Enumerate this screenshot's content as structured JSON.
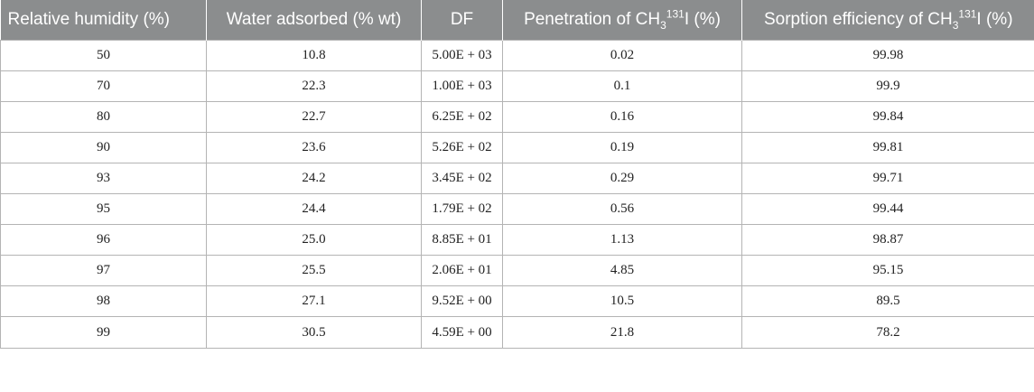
{
  "table": {
    "headers": [
      {
        "text": "Relative humidity (%)"
      },
      {
        "text": "Water adsorbed (% wt)"
      },
      {
        "text": "DF"
      },
      {
        "pre": "Penetration of CH",
        "sub": "3",
        "sup": "131",
        "post": "I (%)"
      },
      {
        "pre": "Sorption efficiency of CH",
        "sub": "3",
        "sup": "131",
        "post": "I (%)"
      }
    ],
    "rows": [
      [
        "50",
        "10.8",
        "5.00E + 03",
        "0.02",
        "99.98"
      ],
      [
        "70",
        "22.3",
        "1.00E + 03",
        "0.1",
        "99.9"
      ],
      [
        "80",
        "22.7",
        "6.25E + 02",
        "0.16",
        "99.84"
      ],
      [
        "90",
        "23.6",
        "5.26E + 02",
        "0.19",
        "99.81"
      ],
      [
        "93",
        "24.2",
        "3.45E + 02",
        "0.29",
        "99.71"
      ],
      [
        "95",
        "24.4",
        "1.79E + 02",
        "0.56",
        "99.44"
      ],
      [
        "96",
        "25.0",
        "8.85E + 01",
        "1.13",
        "98.87"
      ],
      [
        "97",
        "25.5",
        "2.06E + 01",
        "4.85",
        "95.15"
      ],
      [
        "98",
        "27.1",
        "9.52E + 00",
        "10.5",
        "89.5"
      ],
      [
        "99",
        "30.5",
        "4.59E + 00",
        "21.8",
        "78.2"
      ]
    ]
  }
}
